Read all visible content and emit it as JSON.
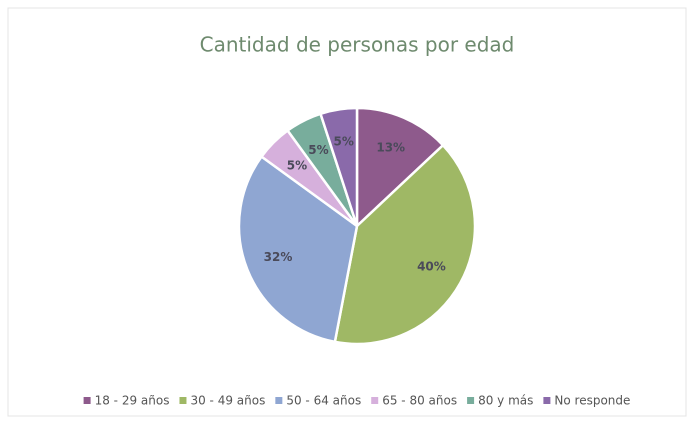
{
  "chart_data": {
    "type": "pie",
    "title": "Cantidad de personas por edad",
    "categories": [
      "18 - 29 años",
      "30 - 49 años",
      "50 - 64 años",
      "65 - 80 años",
      "80 y más",
      "No responde"
    ],
    "values": [
      13,
      40,
      32,
      5,
      5,
      5
    ],
    "value_labels": [
      "13%",
      "40%",
      "32%",
      "5%",
      "5%",
      "5%"
    ],
    "colors": [
      "#8e5a8c",
      "#9fb865",
      "#8fa6d2",
      "#d6b0dc",
      "#78ad9c",
      "#8a6aaa"
    ],
    "legend": "bottom"
  }
}
